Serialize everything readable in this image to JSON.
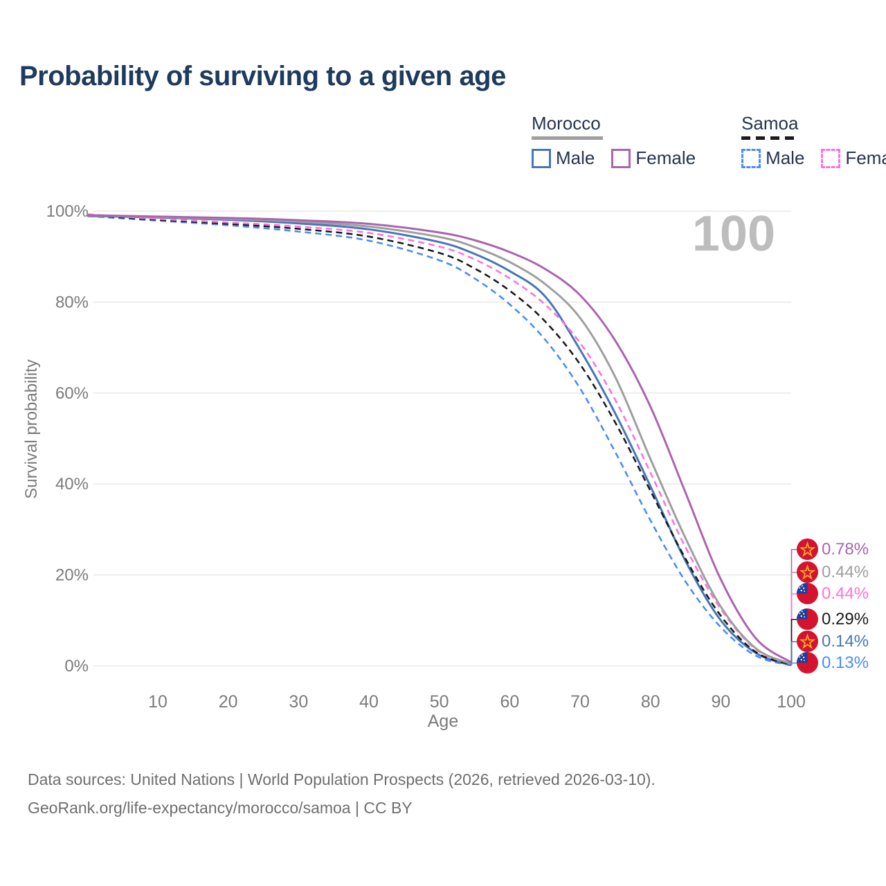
{
  "title": "Probability of surviving to a given age",
  "watermark": "100",
  "legend": {
    "groups": [
      {
        "name": "Morocco",
        "rule_style": "solid",
        "rule_color": "#9e9e9e",
        "items": [
          {
            "label": "Male",
            "color": "#4577b6",
            "dashed": false
          },
          {
            "label": "Female",
            "color": "#ab64ad",
            "dashed": false
          }
        ]
      },
      {
        "name": "Samoa",
        "rule_style": "dashed",
        "rule_color": "#1a1a1a",
        "items": [
          {
            "label": "Male",
            "color": "#4b8cf7",
            "dashed": true
          },
          {
            "label": "Female",
            "color": "#ff70dd",
            "dashed": true
          }
        ]
      }
    ]
  },
  "chart_data": {
    "type": "line",
    "title": "Probability of surviving to a given age",
    "xlabel": "Age",
    "ylabel": "Survival probability",
    "xlim": [
      0,
      100
    ],
    "ylim": [
      0,
      100
    ],
    "grid": "horizontal",
    "xticks": [
      10,
      20,
      30,
      40,
      50,
      60,
      70,
      80,
      90,
      100
    ],
    "yticks": [
      {
        "label": "0%",
        "value": 0
      },
      {
        "label": "20%",
        "value": 20
      },
      {
        "label": "40%",
        "value": 40
      },
      {
        "label": "60%",
        "value": 60
      },
      {
        "label": "80%",
        "value": 80
      },
      {
        "label": "100%",
        "value": 100
      }
    ],
    "x": [
      0,
      10,
      20,
      30,
      40,
      50,
      55,
      60,
      65,
      70,
      75,
      80,
      85,
      90,
      95,
      100
    ],
    "series": [
      {
        "name": "Morocco Female",
        "country": "Morocco",
        "sex": "Female",
        "color": "#ab64ad",
        "dashed": false,
        "flag": "morocco",
        "end_label": "0.78%",
        "values": [
          99.1,
          98.8,
          98.5,
          98.0,
          97.2,
          95.3,
          93.6,
          91.0,
          87.3,
          81.5,
          71.5,
          57.0,
          38.0,
          19.0,
          6.0,
          0.78
        ]
      },
      {
        "name": "Morocco Both sexes",
        "country": "Morocco",
        "sex": "Both",
        "color": "#9e9e9e",
        "dashed": false,
        "flag": "morocco",
        "end_label": "0.44%",
        "values": [
          99.0,
          98.7,
          98.3,
          97.7,
          96.6,
          94.3,
          92.1,
          88.8,
          84.0,
          76.5,
          63.5,
          45.5,
          28.0,
          13.0,
          3.8,
          0.44
        ]
      },
      {
        "name": "Samoa Female",
        "country": "Samoa",
        "sex": "Female",
        "color": "#ff70dd",
        "dashed": true,
        "flag": "samoa",
        "end_label": "0.44%",
        "values": [
          99.3,
          98.3,
          97.5,
          96.6,
          95.2,
          92.2,
          89.4,
          85.2,
          79.5,
          71.0,
          58.5,
          42.5,
          26.0,
          12.5,
          3.6,
          0.44
        ]
      },
      {
        "name": "Samoa Both sexes",
        "country": "Samoa",
        "sex": "Both",
        "color": "#1a1a1a",
        "dashed": true,
        "flag": "samoa",
        "end_label": "0.29%",
        "values": [
          99.1,
          98.1,
          97.2,
          96.1,
          94.4,
          90.8,
          87.4,
          82.5,
          75.8,
          66.3,
          53.5,
          38.5,
          23.5,
          11.0,
          3.0,
          0.29
        ]
      },
      {
        "name": "Morocco Male",
        "country": "Morocco",
        "sex": "Male",
        "color": "#4577b6",
        "dashed": false,
        "flag": "morocco",
        "end_label": "0.14%",
        "values": [
          98.9,
          98.6,
          98.1,
          97.3,
          96.0,
          93.2,
          90.6,
          86.8,
          81.3,
          69.5,
          55.5,
          39.5,
          23.0,
          10.0,
          2.8,
          0.14
        ]
      },
      {
        "name": "Samoa Male",
        "country": "Samoa",
        "sex": "Male",
        "color": "#4b8cf7",
        "dashed": true,
        "flag": "samoa",
        "end_label": "0.13%",
        "values": [
          98.9,
          97.9,
          96.9,
          95.5,
          93.5,
          89.2,
          85.2,
          79.5,
          71.8,
          61.0,
          47.0,
          32.0,
          18.5,
          8.5,
          2.2,
          0.13
        ]
      }
    ],
    "flag_colors": {
      "red": "#d5132f",
      "samoa_blue": "#1f3d99",
      "star_gold": "#efb22d",
      "star_white": "#ffffff"
    }
  },
  "footer": {
    "line1": "Data sources: United Nations | World Population Prospects (2026, retrieved 2026-03-10).",
    "line2": "GeoRank.org/life-expectancy/morocco/samoa | CC BY"
  }
}
